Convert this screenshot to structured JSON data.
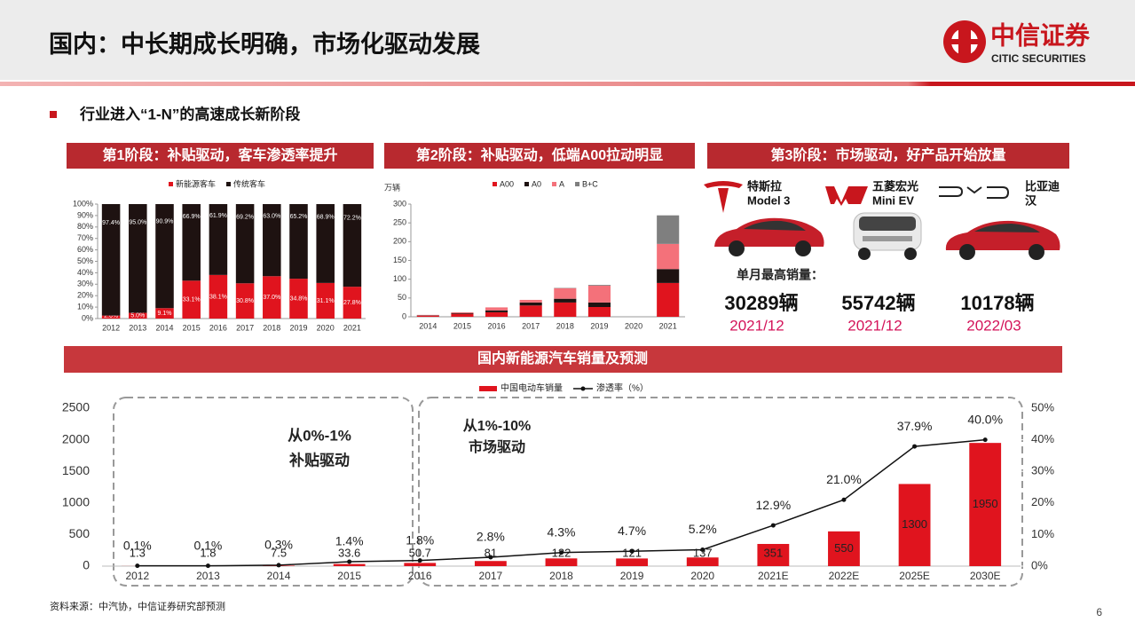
{
  "header": {
    "title": "国内：中长期成长明确，市场化驱动发展",
    "logo_cn": "中信证券",
    "logo_en": "CITIC SECURITIES"
  },
  "bullet": "行业进入“1-N”的高速成长新阶段",
  "stage3": {
    "title": "第3阶段：市场驱动，好产品开始放量",
    "caption": "单月最高销量：",
    "cars": [
      {
        "brand": "特斯拉",
        "model": "Model 3",
        "sales": "30289辆",
        "date": "2021/12"
      },
      {
        "brand": "五菱宏光",
        "model": "Mini EV",
        "sales": "55742辆",
        "date": "2021/12"
      },
      {
        "brand": "比亚迪",
        "model": "汉",
        "sales": "10178辆",
        "date": "2022/03"
      }
    ]
  },
  "source": "资料来源：中汽协，中信证券研究部预测",
  "page_number": "6",
  "chart_data": [
    {
      "type": "bar",
      "stacked": true,
      "title": "第1阶段：补贴驱动，客车渗透率提升",
      "categories": [
        "2012",
        "2013",
        "2014",
        "2015",
        "2016",
        "2017",
        "2018",
        "2019",
        "2020",
        "2021"
      ],
      "series": [
        {
          "name": "新能源客车",
          "color": "#e0141e",
          "values": [
            2.6,
            5.0,
            9.1,
            33.1,
            38.1,
            30.8,
            37.0,
            34.8,
            31.1,
            27.8
          ],
          "value_labels": [
            "2.6%",
            "5.0%",
            "9.1%",
            "33.1%",
            "38.1%",
            "30.8%",
            "37.0%",
            "34.8%",
            "31.1%",
            "27.8%"
          ]
        },
        {
          "name": "传统客车",
          "color": "#1e1211",
          "values": [
            97.4,
            95.0,
            90.9,
            66.9,
            61.9,
            69.2,
            63.0,
            65.2,
            68.9,
            72.2
          ],
          "value_labels": [
            "97.4%",
            "95.0%",
            "90.9%",
            "66.9%",
            "61.9%",
            "69.2%",
            "63.0%",
            "65.2%",
            "68.9%",
            "72.2%"
          ]
        }
      ],
      "ylim": [
        0,
        100
      ],
      "yticks": [
        {
          "value": 0,
          "label": "0%"
        },
        {
          "value": 10,
          "label": "10%"
        },
        {
          "value": 20,
          "label": "20%"
        },
        {
          "value": 30,
          "label": "30%"
        },
        {
          "value": 40,
          "label": "40%"
        },
        {
          "value": 50,
          "label": "50%"
        },
        {
          "value": 60,
          "label": "60%"
        },
        {
          "value": 70,
          "label": "70%"
        },
        {
          "value": 80,
          "label": "80%"
        },
        {
          "value": 90,
          "label": "90%"
        },
        {
          "value": 100,
          "label": "100%"
        }
      ]
    },
    {
      "type": "bar",
      "stacked": true,
      "title": "第2阶段：补贴驱动，低端A00拉动明显",
      "y_label": "万辆",
      "categories": [
        "2014",
        "2015",
        "2016",
        "2017",
        "2018",
        "2019",
        "2020",
        "2021"
      ],
      "series": [
        {
          "name": "A00",
          "color": "#e0141e",
          "values": [
            3,
            8,
            12,
            30,
            38,
            26,
            null,
            90
          ]
        },
        {
          "name": "A0",
          "color": "#1e1211",
          "values": [
            1,
            2,
            5,
            8,
            10,
            12,
            null,
            37
          ]
        },
        {
          "name": "A",
          "color": "#f4717a",
          "values": [
            1,
            2,
            8,
            7,
            28,
            45,
            null,
            67
          ]
        },
        {
          "name": "B+C",
          "color": "#7f7f7f",
          "values": [
            0,
            0,
            0,
            0,
            1,
            2,
            null,
            76
          ]
        }
      ],
      "ylim": [
        0,
        300
      ],
      "yticks": [
        0,
        50,
        100,
        150,
        200,
        250,
        300
      ]
    },
    {
      "type": "bar_line",
      "title": "国内新能源汽车销量及预测",
      "categories": [
        "2012",
        "2013",
        "2014",
        "2015",
        "2016",
        "2017",
        "2018",
        "2019",
        "2020",
        "2021E",
        "2022E",
        "2025E",
        "2030E"
      ],
      "series": [
        {
          "name": "中国电动车销量",
          "color": "#e0141e",
          "values": [
            1.3,
            1.8,
            7.5,
            33.6,
            50.7,
            81,
            122,
            121,
            137,
            351,
            550,
            1300,
            1950
          ]
        },
        {
          "name": "渗透率（%）",
          "color": "#111111",
          "axis": "y2",
          "type": "line",
          "values": [
            0.1,
            0.1,
            0.3,
            1.4,
            1.8,
            2.8,
            4.3,
            4.7,
            5.2,
            12.9,
            21.0,
            37.9,
            40.0
          ],
          "value_labels": [
            "0.1%",
            "0.1%",
            "0.3%",
            "1.4%",
            "1.8%",
            "2.8%",
            "4.3%",
            "4.7%",
            "5.2%",
            "12.9%",
            "21.0%",
            "37.9%",
            "40.0%"
          ]
        }
      ],
      "annotations": [
        "从0%-1%",
        "补贴驱动",
        "从1%-10%",
        "市场驱动"
      ],
      "ylim": [
        0,
        2500
      ],
      "yticks": [
        0,
        500,
        1000,
        1500,
        2000,
        2500
      ],
      "y2lim": [
        0,
        50
      ],
      "y2ticks": [
        {
          "value": 0,
          "label": "0%"
        },
        {
          "value": 10,
          "label": "10%"
        },
        {
          "value": 20,
          "label": "20%"
        },
        {
          "value": 30,
          "label": "30%"
        },
        {
          "value": 40,
          "label": "40%"
        },
        {
          "value": 50,
          "label": "50%"
        }
      ]
    }
  ]
}
